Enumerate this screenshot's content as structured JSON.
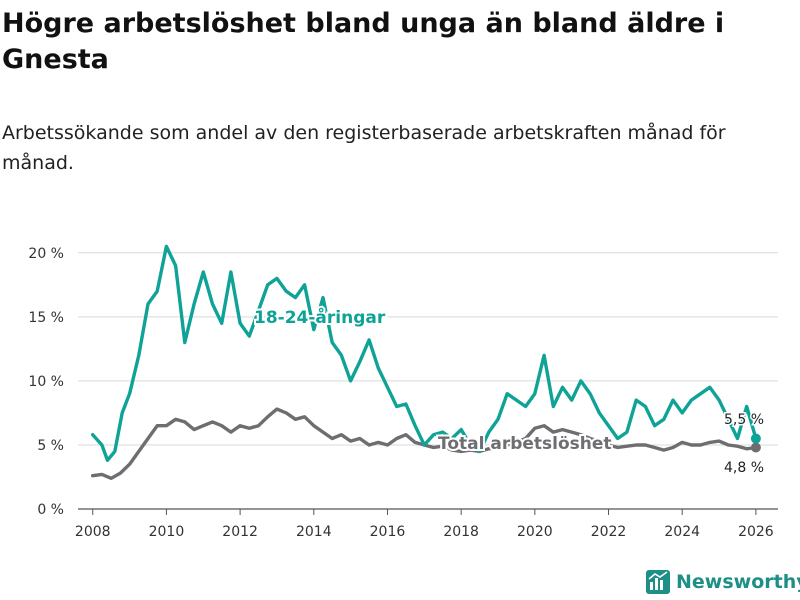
{
  "title": "Högre arbetslöshet bland unga än bland äldre i Gnesta",
  "subtitle": "Arbetssökande som andel av den registerbaserade arbetskraften månad för månad.",
  "brand": "Newsworthy",
  "colors": {
    "youth": "#0fa397",
    "total": "#6e6e72",
    "grid": "#d9d9d9",
    "axis": "#555555",
    "brand": "#1e8f86"
  },
  "chart_data": {
    "type": "line",
    "title": "Högre arbetslöshet bland unga än bland äldre i Gnesta",
    "xlabel": "",
    "ylabel": "",
    "xlim": [
      2007.6,
      2026.6
    ],
    "ylim": [
      0,
      21
    ],
    "yticks": [
      0,
      5,
      10,
      15,
      20
    ],
    "ytick_labels": [
      "0 %",
      "5 %",
      "10 %",
      "15 %",
      "20 %"
    ],
    "xticks": [
      2008,
      2010,
      2012,
      2014,
      2016,
      2018,
      2020,
      2022,
      2024,
      2026
    ],
    "xtick_labels": [
      "2008",
      "2010",
      "2012",
      "2014",
      "2016",
      "2018",
      "2020",
      "2022",
      "2024",
      "2026"
    ],
    "series": [
      {
        "name": "18-24-åringar",
        "label": "18-24-åringar",
        "end_label": "5,5 %",
        "x": [
          2008.0,
          2008.25,
          2008.4,
          2008.6,
          2008.8,
          2009.0,
          2009.25,
          2009.5,
          2009.75,
          2010.0,
          2010.25,
          2010.5,
          2010.75,
          2011.0,
          2011.25,
          2011.5,
          2011.75,
          2012.0,
          2012.25,
          2012.5,
          2012.75,
          2013.0,
          2013.25,
          2013.5,
          2013.75,
          2014.0,
          2014.25,
          2014.5,
          2014.75,
          2015.0,
          2015.25,
          2015.5,
          2015.75,
          2016.0,
          2016.25,
          2016.5,
          2016.75,
          2017.0,
          2017.25,
          2017.5,
          2017.75,
          2018.0,
          2018.25,
          2018.5,
          2018.75,
          2019.0,
          2019.25,
          2019.5,
          2019.75,
          2020.0,
          2020.25,
          2020.5,
          2020.75,
          2021.0,
          2021.25,
          2021.5,
          2021.75,
          2022.0,
          2022.25,
          2022.5,
          2022.75,
          2023.0,
          2023.25,
          2023.5,
          2023.75,
          2024.0,
          2024.25,
          2024.5,
          2024.75,
          2025.0,
          2025.25,
          2025.5,
          2025.75,
          2026.0
        ],
        "values": [
          5.8,
          5.0,
          3.8,
          4.5,
          7.5,
          9.0,
          12.0,
          16.0,
          17.0,
          20.5,
          19.0,
          13.0,
          16.0,
          18.5,
          16.0,
          14.5,
          18.5,
          14.5,
          13.5,
          15.5,
          17.5,
          18.0,
          17.0,
          16.5,
          17.5,
          14.0,
          16.5,
          13.0,
          12.0,
          10.0,
          11.5,
          13.2,
          11.0,
          9.5,
          8.0,
          8.2,
          6.5,
          5.0,
          5.8,
          6.0,
          5.5,
          6.2,
          5.0,
          4.5,
          6.0,
          7.0,
          9.0,
          8.5,
          8.0,
          9.0,
          12.0,
          8.0,
          9.5,
          8.5,
          10.0,
          9.0,
          7.5,
          6.5,
          5.5,
          6.0,
          8.5,
          8.0,
          6.5,
          7.0,
          8.5,
          7.5,
          8.5,
          9.0,
          9.5,
          8.5,
          7.0,
          5.5,
          8.0,
          5.5
        ]
      },
      {
        "name": "Total arbetslöshet",
        "label": "Total arbetslöshet",
        "end_label": "4,8 %",
        "x": [
          2008.0,
          2008.25,
          2008.5,
          2008.75,
          2009.0,
          2009.25,
          2009.5,
          2009.75,
          2010.0,
          2010.25,
          2010.5,
          2010.75,
          2011.0,
          2011.25,
          2011.5,
          2011.75,
          2012.0,
          2012.25,
          2012.5,
          2012.75,
          2013.0,
          2013.25,
          2013.5,
          2013.75,
          2014.0,
          2014.25,
          2014.5,
          2014.75,
          2015.0,
          2015.25,
          2015.5,
          2015.75,
          2016.0,
          2016.25,
          2016.5,
          2016.75,
          2017.0,
          2017.25,
          2017.5,
          2017.75,
          2018.0,
          2018.25,
          2018.5,
          2018.75,
          2019.0,
          2019.25,
          2019.5,
          2019.75,
          2020.0,
          2020.25,
          2020.5,
          2020.75,
          2021.0,
          2021.25,
          2021.5,
          2021.75,
          2022.0,
          2022.25,
          2022.5,
          2022.75,
          2023.0,
          2023.25,
          2023.5,
          2023.75,
          2024.0,
          2024.25,
          2024.5,
          2024.75,
          2025.0,
          2025.25,
          2025.5,
          2025.75,
          2026.0
        ],
        "values": [
          2.6,
          2.7,
          2.4,
          2.8,
          3.5,
          4.5,
          5.5,
          6.5,
          6.5,
          7.0,
          6.8,
          6.2,
          6.5,
          6.8,
          6.5,
          6.0,
          6.5,
          6.3,
          6.5,
          7.2,
          7.8,
          7.5,
          7.0,
          7.2,
          6.5,
          6.0,
          5.5,
          5.8,
          5.3,
          5.5,
          5.0,
          5.2,
          5.0,
          5.5,
          5.8,
          5.2,
          5.0,
          4.8,
          4.9,
          4.6,
          4.5,
          4.6,
          4.5,
          4.7,
          4.8,
          5.0,
          5.2,
          5.5,
          6.3,
          6.5,
          6.0,
          6.2,
          6.0,
          5.8,
          5.5,
          5.3,
          5.0,
          4.8,
          4.9,
          5.0,
          5.0,
          4.8,
          4.6,
          4.8,
          5.2,
          5.0,
          5.0,
          5.2,
          5.3,
          5.0,
          4.9,
          4.7,
          4.8
        ]
      }
    ]
  }
}
